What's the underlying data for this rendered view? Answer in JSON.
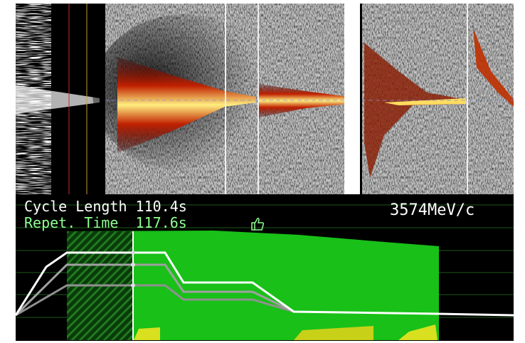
{
  "panel": {
    "cycle_length": "Cycle Length 110.4s",
    "repetition_time": "Repet. Time  117.6s",
    "momentum": "3574MeV/c"
  }
}
